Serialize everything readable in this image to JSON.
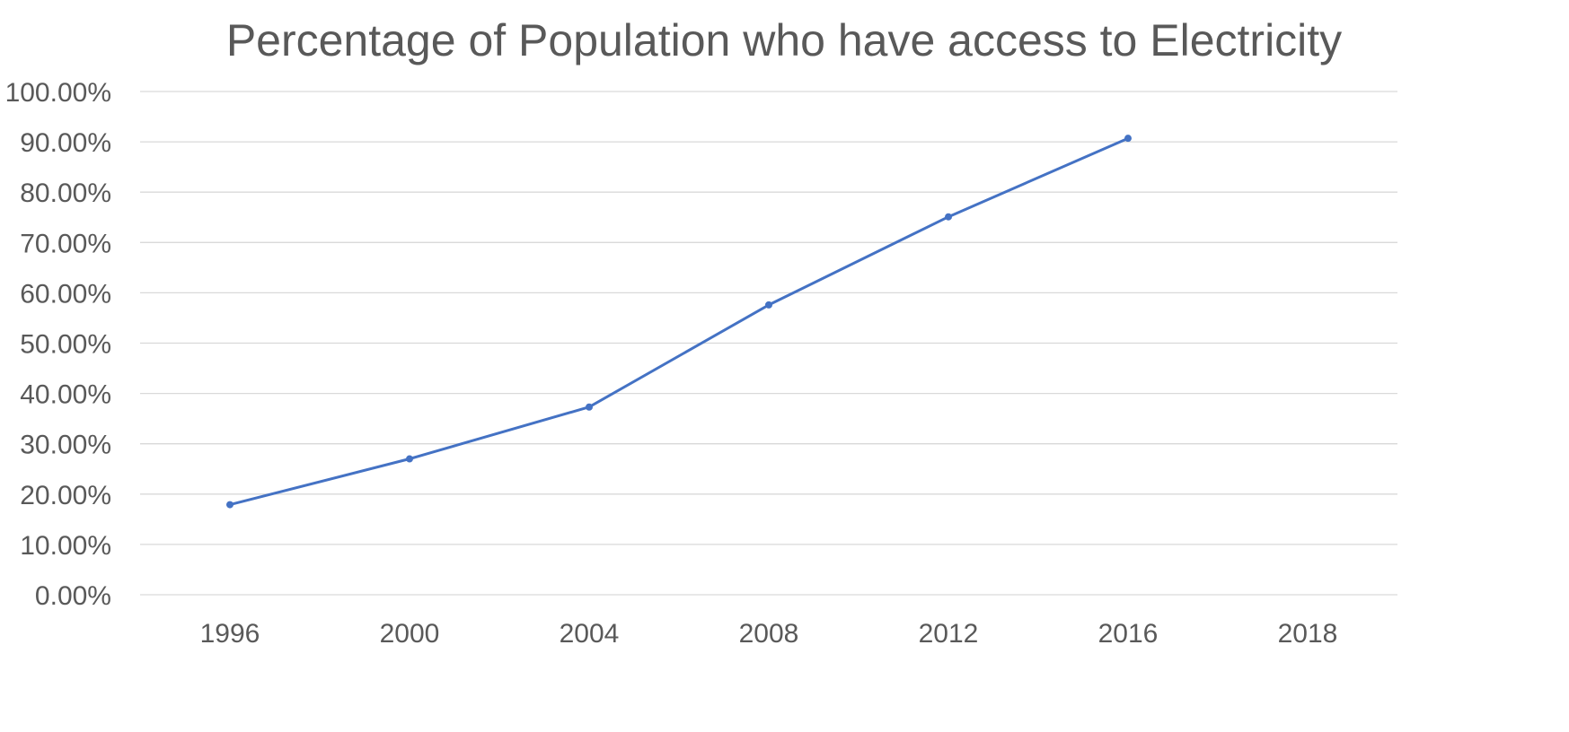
{
  "chart_data": {
    "type": "line",
    "title": "Percentage of Population who have access to Electricity",
    "xlabel": "",
    "ylabel": "",
    "categories": [
      "1996",
      "2000",
      "2004",
      "2008",
      "2012",
      "2016",
      "2018"
    ],
    "series": [
      {
        "values": [
          17.9,
          27.0,
          37.3,
          57.6,
          75.1,
          90.7,
          null
        ],
        "color": "#4472c4",
        "marker": "circle"
      }
    ],
    "y_ticks": [
      "0.00%",
      "10.00%",
      "20.00%",
      "30.00%",
      "40.00%",
      "50.00%",
      "60.00%",
      "70.00%",
      "80.00%",
      "90.00%",
      "100.00%"
    ],
    "ylim": [
      0,
      100
    ],
    "y_unit": "%",
    "grid": true,
    "legend": "none",
    "colors": {
      "series": "#4472c4",
      "gridline": "#d9d9d9",
      "text": "#595959",
      "background": "#ffffff"
    }
  }
}
